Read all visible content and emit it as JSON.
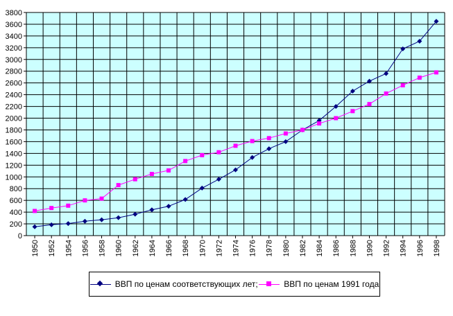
{
  "chart_data": {
    "type": "line",
    "title": "",
    "xlabel": "",
    "ylabel": "",
    "ylim": [
      0,
      3800
    ],
    "ytick_step": 200,
    "grid": true,
    "legend_position": "bottom",
    "x": [
      1950,
      1952,
      1954,
      1956,
      1958,
      1960,
      1962,
      1964,
      1966,
      1968,
      1970,
      1972,
      1974,
      1976,
      1978,
      1980,
      1982,
      1984,
      1986,
      1988,
      1990,
      1992,
      1994,
      1996,
      1998
    ],
    "series": [
      {
        "name": "ВВП по ценам соответствующих лет;",
        "color": "#000080",
        "marker": "diamond",
        "values": [
          150,
          185,
          205,
          245,
          270,
          305,
          365,
          440,
          500,
          615,
          810,
          960,
          1120,
          1330,
          1480,
          1600,
          1800,
          1960,
          2200,
          2460,
          2630,
          2760,
          3180,
          3310,
          3650
        ]
      },
      {
        "name": "ВВП по ценам 1991 года",
        "color": "#ff00ff",
        "marker": "square",
        "values": [
          420,
          470,
          510,
          600,
          630,
          860,
          960,
          1050,
          1110,
          1270,
          1370,
          1420,
          1530,
          1610,
          1660,
          1740,
          1800,
          1910,
          2000,
          2120,
          2240,
          2420,
          2560,
          2690,
          2780
        ]
      }
    ]
  }
}
